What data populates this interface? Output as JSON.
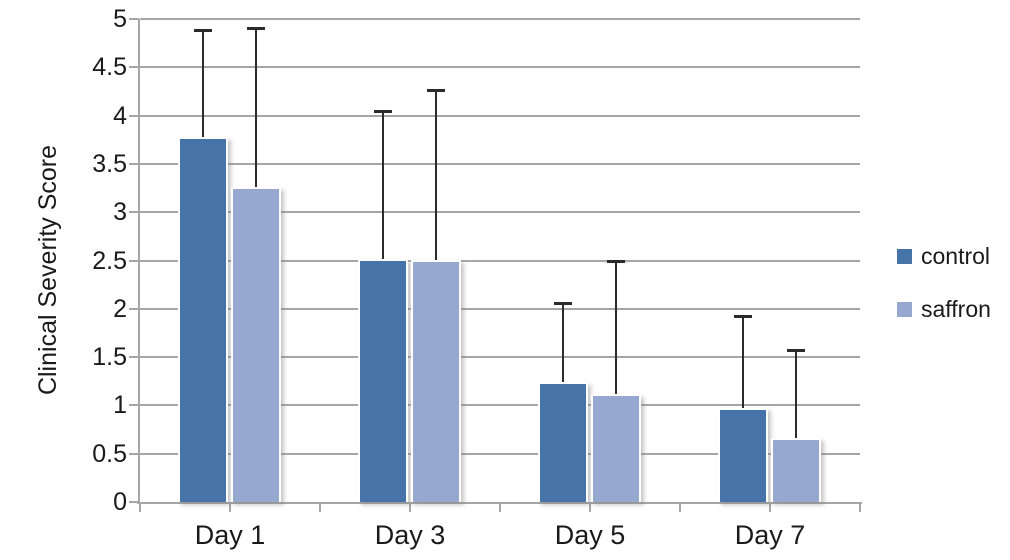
{
  "chart_data": {
    "type": "bar",
    "title": "",
    "xlabel": "",
    "ylabel": "Clinical Severity Score",
    "categories": [
      "Day 1",
      "Day 3",
      "Day 5",
      "Day 7"
    ],
    "series": [
      {
        "name": "control",
        "color": "#4673A8",
        "values": [
          3.78,
          2.52,
          1.24,
          0.97
        ],
        "error_plus": [
          1.1,
          1.52,
          0.81,
          0.95
        ]
      },
      {
        "name": "saffron",
        "color": "#97A8D0",
        "values": [
          3.26,
          2.51,
          1.12,
          0.66
        ],
        "error_plus": [
          1.64,
          1.74,
          1.36,
          0.9
        ]
      }
    ],
    "ylim": [
      0,
      5
    ],
    "yticks": [
      0,
      0.5,
      1,
      1.5,
      2,
      2.5,
      3,
      3.5,
      4,
      4.5,
      5
    ],
    "ytick_labels": [
      "0",
      "0.5",
      "1",
      "1.5",
      "2",
      "2.5",
      "3",
      "3.5",
      "4",
      "4.5",
      "5"
    ],
    "grid": true,
    "legend_position": "right",
    "error_bars": "plus-direction-only"
  },
  "colors": {
    "grid": "#A6A6A6",
    "axis": "#A6A6A6",
    "error_bar": "#2B2B2B",
    "text": "#1a1a1a",
    "background": "#FFFFFF"
  }
}
